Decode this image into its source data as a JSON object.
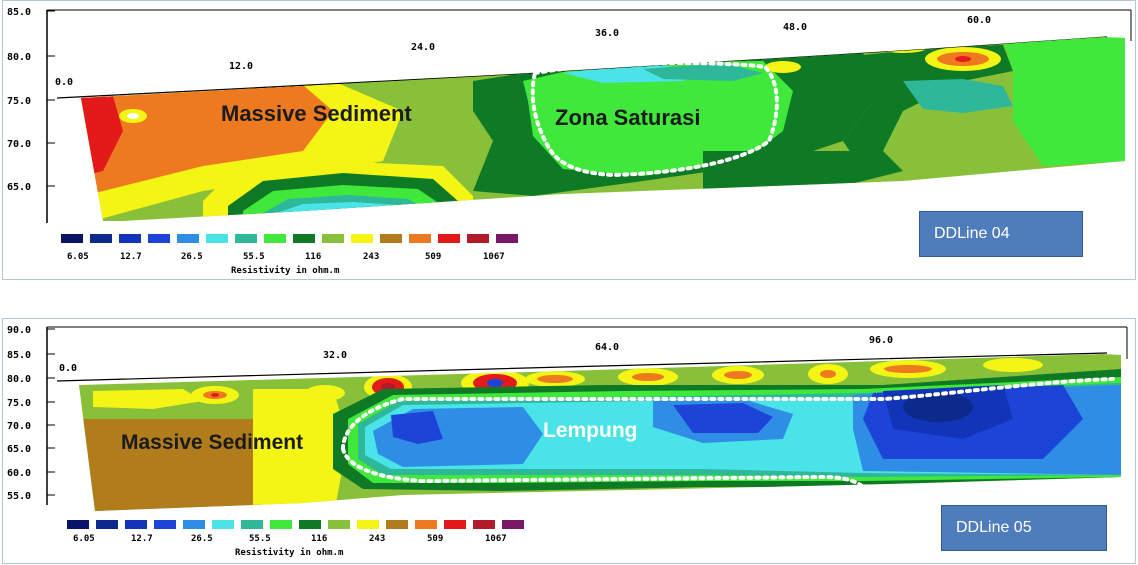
{
  "sections": [
    {
      "line_label": "DDLine 04",
      "y_ticks": [
        "85.0",
        "80.0",
        "75.0",
        "70.0",
        "65.0"
      ],
      "x_ticks": [
        "0.0",
        "12.0",
        "24.0",
        "36.0",
        "48.0",
        "60.0"
      ],
      "annotations": [
        "Massive Sediment",
        "Zona Saturasi"
      ],
      "legend_values": [
        "6.05",
        "12.7",
        "26.5",
        "55.5",
        "116",
        "243",
        "509",
        "1067"
      ],
      "legend_title": "Resistivity in ohm.m"
    },
    {
      "line_label": "DDLine 05",
      "y_ticks": [
        "90.0",
        "85.0",
        "80.0",
        "75.0",
        "70.0",
        "65.0",
        "60.0",
        "55.0"
      ],
      "x_ticks": [
        "0.0",
        "32.0",
        "64.0",
        "96.0"
      ],
      "annotations": [
        "Massive Sediment",
        "Lempung"
      ],
      "legend_values": [
        "6.05",
        "12.7",
        "26.5",
        "55.5",
        "116",
        "243",
        "509",
        "1067"
      ],
      "legend_title": "Resistivity in ohm.m"
    }
  ],
  "colors": {
    "legend": [
      "#0a1466",
      "#0b2a8c",
      "#1234b8",
      "#1c45d8",
      "#2f8de6",
      "#49e3e8",
      "#2fb79a",
      "#3fe83a",
      "#0f7a26",
      "#88c03a",
      "#f4f415",
      "#b07c1c",
      "#ee7a1f",
      "#e21a1a",
      "#b01b2a",
      "#7a1767"
    ]
  }
}
